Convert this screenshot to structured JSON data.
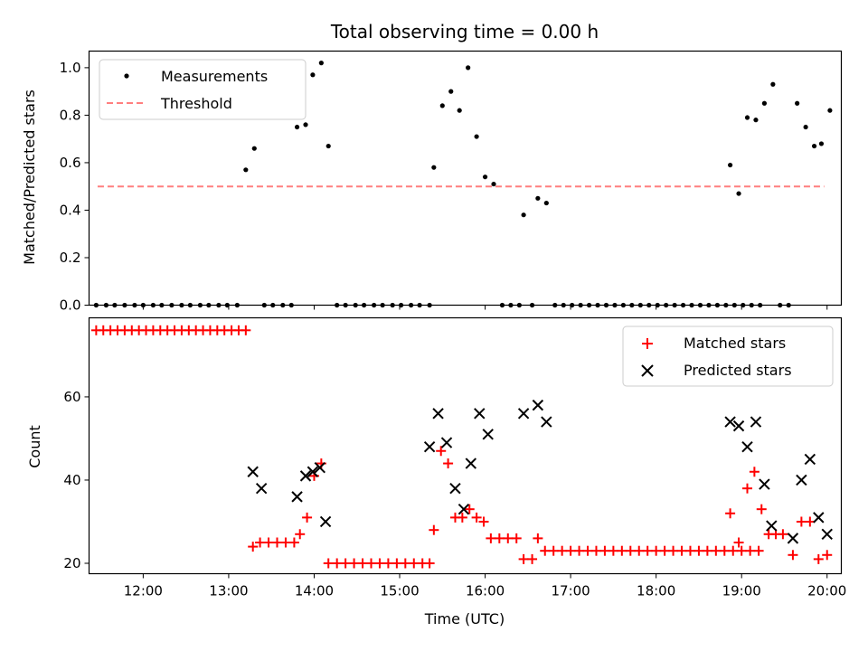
{
  "chart_data": [
    {
      "type": "scatter",
      "title": "Total observing time = 0.00 h",
      "xlabel": "",
      "ylabel": "Matched/Predicted stars",
      "xlim": [
        "11:22",
        "20:10"
      ],
      "ylim": [
        0,
        1.07
      ],
      "yticks": [
        "0.0",
        "0.2",
        "0.4",
        "0.6",
        "0.8",
        "1.0"
      ],
      "grid": false,
      "legend": "upper-left",
      "series": [
        {
          "name": "Measurements",
          "marker": "dot",
          "color": "#000000",
          "points": [
            [
              "11:27",
              0
            ],
            [
              "11:34",
              0
            ],
            [
              "11:40",
              0
            ],
            [
              "11:47",
              0
            ],
            [
              "11:54",
              0
            ],
            [
              "12:00",
              0
            ],
            [
              "12:07",
              0
            ],
            [
              "12:13",
              0
            ],
            [
              "12:20",
              0
            ],
            [
              "12:27",
              0
            ],
            [
              "12:33",
              0
            ],
            [
              "12:40",
              0
            ],
            [
              "12:46",
              0
            ],
            [
              "12:53",
              0
            ],
            [
              "12:59",
              0
            ],
            [
              "13:06",
              0
            ],
            [
              "13:12",
              0.57
            ],
            [
              "13:18",
              0.66
            ],
            [
              "13:25",
              0
            ],
            [
              "13:31",
              0
            ],
            [
              "13:38",
              0
            ],
            [
              "13:44",
              0
            ],
            [
              "13:48",
              0.75
            ],
            [
              "13:54",
              0.76
            ],
            [
              "13:59",
              0.97
            ],
            [
              "14:05",
              1.02
            ],
            [
              "14:10",
              0.67
            ],
            [
              "14:16",
              0
            ],
            [
              "14:22",
              0
            ],
            [
              "14:29",
              0
            ],
            [
              "14:35",
              0
            ],
            [
              "14:42",
              0
            ],
            [
              "14:48",
              0
            ],
            [
              "14:55",
              0
            ],
            [
              "15:01",
              0
            ],
            [
              "15:08",
              0
            ],
            [
              "15:14",
              0
            ],
            [
              "15:21",
              0
            ],
            [
              "15:24",
              0.58
            ],
            [
              "15:30",
              0.84
            ],
            [
              "15:36",
              0.9
            ],
            [
              "15:42",
              0.82
            ],
            [
              "15:48",
              1.0
            ],
            [
              "15:54",
              0.71
            ],
            [
              "16:00",
              0.54
            ],
            [
              "16:06",
              0.51
            ],
            [
              "16:12",
              0
            ],
            [
              "16:18",
              0
            ],
            [
              "16:24",
              0
            ],
            [
              "16:27",
              0.38
            ],
            [
              "16:33",
              0
            ],
            [
              "16:37",
              0.45
            ],
            [
              "16:43",
              0.43
            ],
            [
              "16:49",
              0
            ],
            [
              "16:55",
              0
            ],
            [
              "17:01",
              0
            ],
            [
              "17:07",
              0
            ],
            [
              "17:13",
              0
            ],
            [
              "17:19",
              0
            ],
            [
              "17:25",
              0
            ],
            [
              "17:31",
              0
            ],
            [
              "17:37",
              0
            ],
            [
              "17:43",
              0
            ],
            [
              "17:49",
              0
            ],
            [
              "17:55",
              0
            ],
            [
              "18:01",
              0
            ],
            [
              "18:07",
              0
            ],
            [
              "18:13",
              0
            ],
            [
              "18:19",
              0
            ],
            [
              "18:25",
              0
            ],
            [
              "18:31",
              0
            ],
            [
              "18:37",
              0
            ],
            [
              "18:43",
              0
            ],
            [
              "18:49",
              0
            ],
            [
              "18:55",
              0
            ],
            [
              "19:01",
              0
            ],
            [
              "19:07",
              0
            ],
            [
              "19:13",
              0
            ],
            [
              "18:52",
              0.59
            ],
            [
              "18:58",
              0.47
            ],
            [
              "19:04",
              0.79
            ],
            [
              "19:10",
              0.78
            ],
            [
              "19:16",
              0.85
            ],
            [
              "19:22",
              0.93
            ],
            [
              "19:27",
              0
            ],
            [
              "19:33",
              0
            ],
            [
              "19:39",
              0.85
            ],
            [
              "19:45",
              0.75
            ],
            [
              "19:51",
              0.67
            ],
            [
              "19:56",
              0.68
            ],
            [
              "20:02",
              0.82
            ]
          ]
        },
        {
          "name": "Threshold",
          "marker": "dashed-line",
          "color": "#ff7f7f",
          "points": [
            [
              "11:28",
              0.5
            ],
            [
              "19:58",
              0.5
            ]
          ]
        }
      ]
    },
    {
      "type": "scatter",
      "title": "",
      "xlabel": "Time (UTC)",
      "ylabel": "Count",
      "xlim": [
        "11:22",
        "20:10"
      ],
      "ylim": [
        17.5,
        79
      ],
      "yticks": [
        "20",
        "40",
        "60"
      ],
      "xticks": [
        "12:00",
        "13:00",
        "14:00",
        "15:00",
        "16:00",
        "17:00",
        "18:00",
        "19:00",
        "20:00"
      ],
      "grid": false,
      "legend": "upper-right",
      "series": [
        {
          "name": "Matched stars",
          "marker": "plus",
          "color": "#ff0000",
          "points": [
            [
              "11:27",
              76
            ],
            [
              "11:32",
              76
            ],
            [
              "11:37",
              76
            ],
            [
              "11:42",
              76
            ],
            [
              "11:47",
              76
            ],
            [
              "11:52",
              76
            ],
            [
              "11:57",
              76
            ],
            [
              "12:02",
              76
            ],
            [
              "12:07",
              76
            ],
            [
              "12:12",
              76
            ],
            [
              "12:17",
              76
            ],
            [
              "12:22",
              76
            ],
            [
              "12:27",
              76
            ],
            [
              "12:32",
              76
            ],
            [
              "12:37",
              76
            ],
            [
              "12:42",
              76
            ],
            [
              "12:47",
              76
            ],
            [
              "12:52",
              76
            ],
            [
              "12:57",
              76
            ],
            [
              "13:02",
              76
            ],
            [
              "13:07",
              76
            ],
            [
              "13:12",
              76
            ],
            [
              "13:17",
              24
            ],
            [
              "13:22",
              25
            ],
            [
              "13:28",
              25
            ],
            [
              "13:34",
              25
            ],
            [
              "13:40",
              25
            ],
            [
              "13:46",
              25
            ],
            [
              "13:50",
              27
            ],
            [
              "13:55",
              31
            ],
            [
              "14:00",
              41
            ],
            [
              "14:05",
              44
            ],
            [
              "14:10",
              20
            ],
            [
              "14:16",
              20
            ],
            [
              "14:22",
              20
            ],
            [
              "14:28",
              20
            ],
            [
              "14:34",
              20
            ],
            [
              "14:40",
              20
            ],
            [
              "14:46",
              20
            ],
            [
              "14:52",
              20
            ],
            [
              "14:58",
              20
            ],
            [
              "15:04",
              20
            ],
            [
              "15:10",
              20
            ],
            [
              "15:16",
              20
            ],
            [
              "15:21",
              20
            ],
            [
              "15:24",
              28
            ],
            [
              "15:29",
              47
            ],
            [
              "15:34",
              44
            ],
            [
              "15:39",
              31
            ],
            [
              "15:44",
              31
            ],
            [
              "15:49",
              33
            ],
            [
              "15:54",
              31
            ],
            [
              "15:59",
              30
            ],
            [
              "16:04",
              26
            ],
            [
              "16:10",
              26
            ],
            [
              "16:16",
              26
            ],
            [
              "16:22",
              26
            ],
            [
              "16:27",
              21
            ],
            [
              "16:33",
              21
            ],
            [
              "16:37",
              26
            ],
            [
              "16:42",
              23
            ],
            [
              "16:48",
              23
            ],
            [
              "16:54",
              23
            ],
            [
              "17:00",
              23
            ],
            [
              "17:06",
              23
            ],
            [
              "17:12",
              23
            ],
            [
              "17:18",
              23
            ],
            [
              "17:24",
              23
            ],
            [
              "17:30",
              23
            ],
            [
              "17:36",
              23
            ],
            [
              "17:42",
              23
            ],
            [
              "17:48",
              23
            ],
            [
              "17:54",
              23
            ],
            [
              "18:00",
              23
            ],
            [
              "18:06",
              23
            ],
            [
              "18:12",
              23
            ],
            [
              "18:18",
              23
            ],
            [
              "18:24",
              23
            ],
            [
              "18:30",
              23
            ],
            [
              "18:36",
              23
            ],
            [
              "18:42",
              23
            ],
            [
              "18:48",
              23
            ],
            [
              "18:54",
              23
            ],
            [
              "19:00",
              23
            ],
            [
              "19:06",
              23
            ],
            [
              "19:12",
              23
            ],
            [
              "18:52",
              32
            ],
            [
              "18:58",
              25
            ],
            [
              "19:04",
              38
            ],
            [
              "19:09",
              42
            ],
            [
              "19:14",
              33
            ],
            [
              "19:19",
              27
            ],
            [
              "19:24",
              27
            ],
            [
              "19:29",
              27
            ],
            [
              "19:36",
              22
            ],
            [
              "19:42",
              30
            ],
            [
              "19:48",
              30
            ],
            [
              "19:54",
              21
            ],
            [
              "20:00",
              22
            ]
          ]
        },
        {
          "name": "Predicted stars",
          "marker": "x",
          "color": "#000000",
          "points": [
            [
              "13:17",
              42
            ],
            [
              "13:23",
              38
            ],
            [
              "13:48",
              36
            ],
            [
              "13:54",
              41
            ],
            [
              "13:59",
              42
            ],
            [
              "14:04",
              43
            ],
            [
              "14:08",
              30
            ],
            [
              "15:21",
              48
            ],
            [
              "15:27",
              56
            ],
            [
              "15:33",
              49
            ],
            [
              "15:39",
              38
            ],
            [
              "15:45",
              33
            ],
            [
              "15:50",
              44
            ],
            [
              "15:56",
              56
            ],
            [
              "16:02",
              51
            ],
            [
              "16:27",
              56
            ],
            [
              "16:37",
              58
            ],
            [
              "16:43",
              54
            ],
            [
              "18:52",
              54
            ],
            [
              "18:58",
              53
            ],
            [
              "19:04",
              48
            ],
            [
              "19:10",
              54
            ],
            [
              "19:16",
              39
            ],
            [
              "19:21",
              29
            ],
            [
              "19:36",
              26
            ],
            [
              "19:42",
              40
            ],
            [
              "19:48",
              45
            ],
            [
              "19:54",
              31
            ],
            [
              "20:00",
              27
            ]
          ]
        }
      ]
    }
  ]
}
